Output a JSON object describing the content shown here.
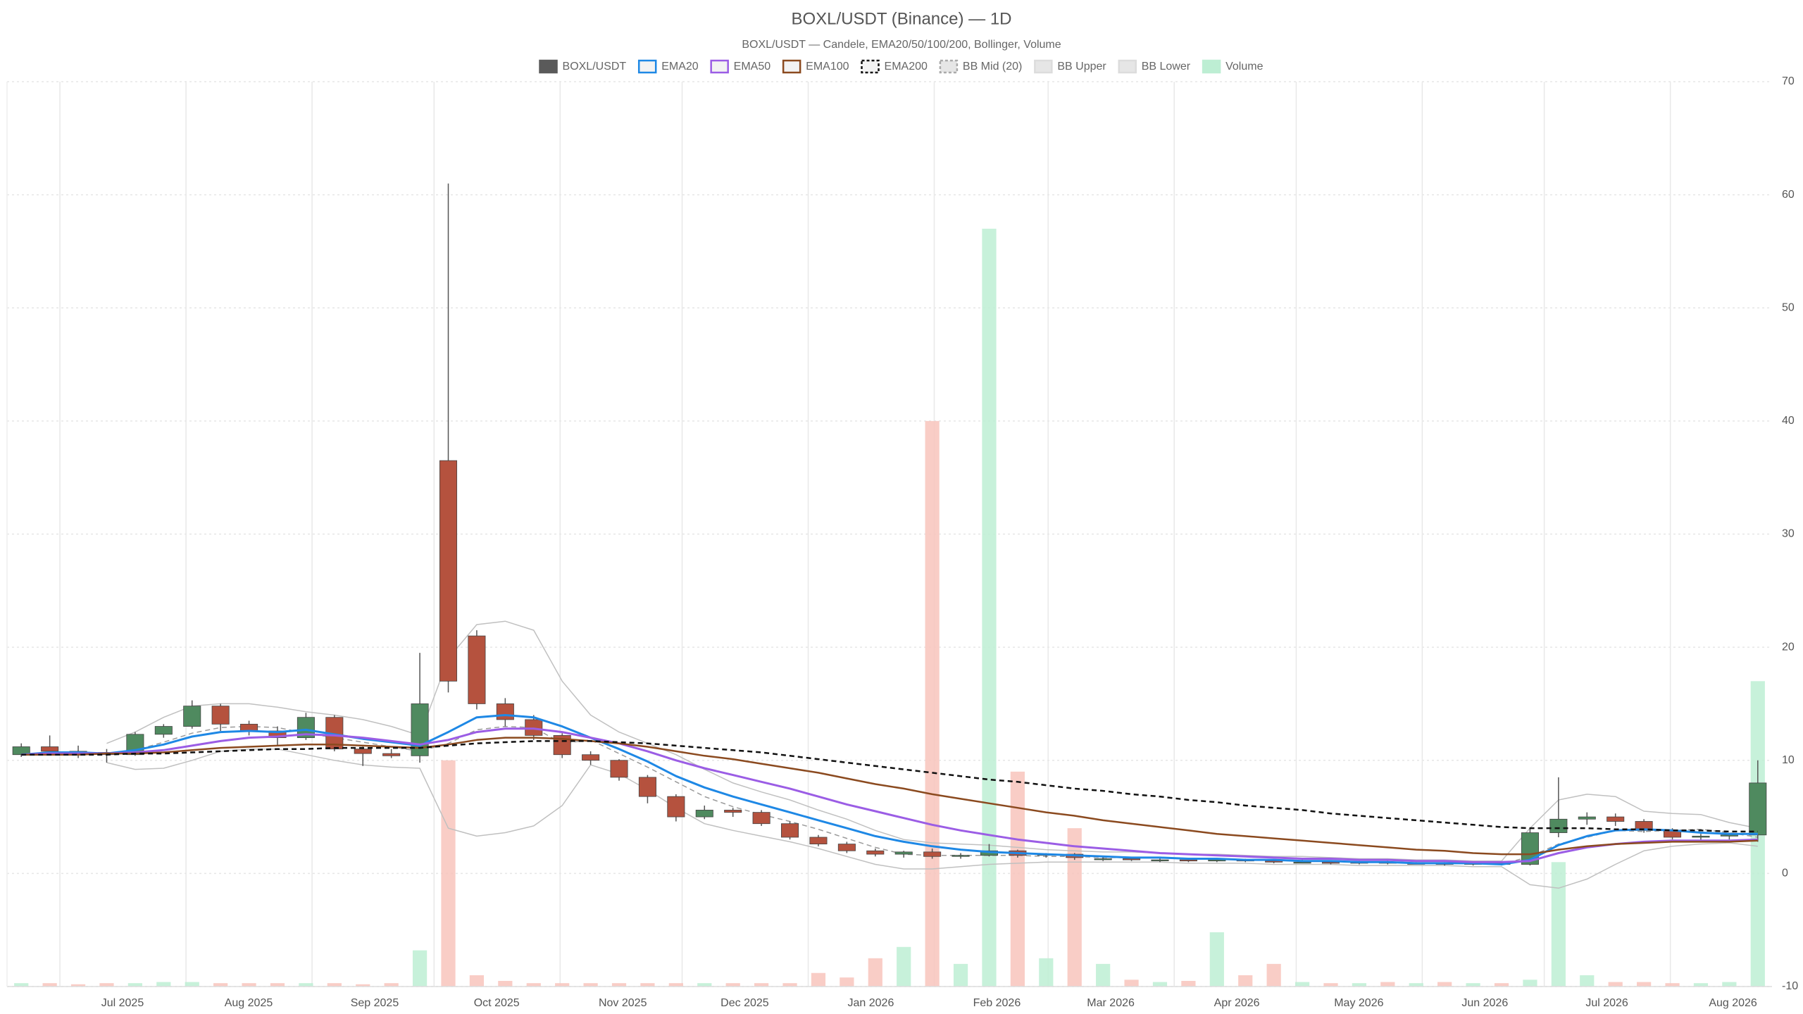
{
  "chart_data": {
    "type": "candlestick",
    "title": "BOXL/USDT (Binance) — 1D",
    "subtitle": "BOXL/USDT — Candele, EMA20/50/100/200, Bollinger, Volume",
    "categories": [
      null,
      null,
      null,
      null,
      null,
      null,
      null,
      null,
      null,
      null,
      null,
      null,
      null,
      null,
      null,
      null,
      null,
      null,
      null,
      null,
      null,
      null,
      null,
      null,
      null,
      null,
      null,
      null,
      null,
      null,
      null,
      null,
      null,
      null,
      null,
      null,
      null,
      null,
      null,
      null,
      null,
      null,
      null,
      null,
      null,
      null,
      null,
      null,
      null,
      null,
      null,
      null,
      null,
      null,
      null,
      null,
      null,
      null,
      null,
      null,
      null,
      null
    ],
    "xticks": [
      {
        "value": 1.857,
        "label": "Jul 2025"
      },
      {
        "value": 6.286,
        "label": "Aug 2025"
      },
      {
        "value": 10.714,
        "label": "Sep 2025"
      },
      {
        "value": 15,
        "label": "Oct 2025"
      },
      {
        "value": 19.429,
        "label": "Nov 2025"
      },
      {
        "value": 23.714,
        "label": "Dec 2025"
      },
      {
        "value": 28.143,
        "label": "Jan 2026"
      },
      {
        "value": 32.571,
        "label": "Feb 2026"
      },
      {
        "value": 36.571,
        "label": "Mar 2026"
      },
      {
        "value": 41,
        "label": "Apr 2026"
      },
      {
        "value": 45.286,
        "label": "May 2026"
      },
      {
        "value": 49.714,
        "label": "Jun 2026"
      },
      {
        "value": 54,
        "label": "Jul 2026"
      },
      {
        "value": 58.429,
        "label": "Aug 2026"
      }
    ],
    "ylim": [
      -10,
      70
    ],
    "yticks": [
      -10,
      0,
      10,
      20,
      30,
      40,
      50,
      60,
      70
    ],
    "y2lim": [
      0,
      80
    ],
    "grid": true,
    "series": [
      {
        "name": "BOXL/USDT",
        "type": "candlestick",
        "color": "#5a5a5a",
        "up_color": "#4f8a5f",
        "down_color": "#b5523e",
        "open": [
          10.5,
          11.2,
          10.8,
          10.7,
          10.5,
          12.3,
          13.0,
          14.8,
          13.2,
          12.6,
          12.0,
          13.8,
          11.0,
          10.6,
          10.4,
          36.5,
          21.0,
          15.0,
          13.6,
          12.2,
          10.5,
          10.0,
          8.5,
          6.8,
          5.0,
          5.6,
          5.4,
          4.4,
          3.2,
          2.6,
          2.0,
          1.7,
          1.9,
          1.5,
          1.6,
          2.0,
          1.6,
          1.7,
          1.3,
          1.3,
          1.2,
          1.2,
          1.1,
          1.2,
          1.1,
          1.0,
          1.0,
          0.9,
          1.0,
          0.9,
          0.9,
          0.8,
          0.9,
          0.8,
          3.6,
          4.8,
          5.0,
          4.6,
          3.8,
          3.2,
          3.3,
          3.4
        ],
        "high": [
          11.5,
          12.2,
          11.3,
          11.0,
          12.5,
          13.2,
          15.3,
          15.0,
          13.5,
          13.0,
          14.2,
          14.0,
          11.2,
          11.0,
          19.5,
          61.0,
          21.5,
          15.5,
          14.0,
          12.4,
          10.8,
          10.1,
          8.7,
          7.0,
          6.0,
          5.8,
          5.6,
          4.6,
          3.4,
          2.8,
          2.2,
          2.0,
          2.2,
          1.8,
          2.6,
          2.1,
          1.8,
          1.8,
          1.5,
          1.4,
          1.4,
          1.3,
          1.3,
          1.3,
          1.2,
          1.2,
          1.1,
          1.1,
          1.1,
          1.0,
          1.0,
          1.0,
          1.0,
          4.0,
          8.5,
          5.4,
          5.3,
          4.8,
          4.0,
          3.5,
          3.6,
          10.0
        ],
        "low": [
          10.3,
          10.6,
          10.2,
          9.8,
          10.4,
          12.0,
          12.8,
          12.6,
          12.2,
          11.3,
          11.8,
          10.8,
          9.5,
          10.2,
          9.8,
          16.0,
          14.5,
          13.0,
          11.8,
          10.2,
          9.6,
          8.2,
          6.2,
          4.6,
          4.8,
          5.0,
          4.2,
          3.0,
          2.4,
          1.8,
          1.5,
          1.4,
          1.3,
          1.3,
          1.5,
          1.4,
          1.4,
          1.2,
          1.1,
          1.1,
          1.0,
          1.0,
          1.0,
          1.0,
          0.9,
          0.9,
          0.8,
          0.8,
          0.8,
          0.8,
          0.7,
          0.7,
          0.7,
          0.7,
          3.2,
          4.3,
          4.2,
          3.6,
          3.0,
          2.9,
          3.0,
          2.8
        ],
        "close": [
          11.2,
          10.8,
          10.7,
          10.5,
          12.3,
          13.0,
          14.8,
          13.2,
          12.6,
          12.0,
          13.8,
          11.0,
          10.6,
          10.4,
          15.0,
          17.0,
          15.0,
          13.6,
          12.2,
          10.5,
          10.0,
          8.5,
          6.8,
          5.0,
          5.6,
          5.4,
          4.4,
          3.2,
          2.6,
          2.0,
          1.7,
          1.9,
          1.5,
          1.6,
          2.0,
          1.6,
          1.7,
          1.4,
          1.3,
          1.2,
          1.2,
          1.1,
          1.2,
          1.1,
          1.0,
          1.0,
          0.9,
          1.0,
          0.9,
          0.9,
          0.8,
          0.9,
          0.8,
          3.6,
          4.8,
          5.0,
          4.6,
          3.8,
          3.2,
          3.3,
          3.4,
          8.0
        ]
      },
      {
        "name": "EMA20",
        "type": "line",
        "color": "#1e88e5",
        "width": 3,
        "values": [
          10.5,
          10.7,
          10.7,
          10.6,
          10.9,
          11.4,
          12.1,
          12.5,
          12.6,
          12.5,
          12.7,
          12.3,
          11.9,
          11.6,
          11.3,
          12.5,
          13.8,
          14.0,
          13.8,
          13.0,
          12.0,
          11.0,
          9.9,
          8.6,
          7.6,
          6.8,
          6.1,
          5.4,
          4.7,
          4.0,
          3.3,
          2.8,
          2.4,
          2.1,
          1.9,
          1.8,
          1.7,
          1.6,
          1.5,
          1.4,
          1.4,
          1.3,
          1.3,
          1.2,
          1.2,
          1.1,
          1.1,
          1.0,
          1.0,
          0.9,
          0.9,
          0.9,
          0.8,
          1.2,
          2.5,
          3.3,
          3.8,
          3.9,
          3.8,
          3.6,
          3.5,
          3.5
        ]
      },
      {
        "name": "EMA50",
        "type": "line",
        "color": "#9b5de5",
        "width": 3,
        "values": [
          10.5,
          10.6,
          10.6,
          10.6,
          10.7,
          10.9,
          11.3,
          11.7,
          12.0,
          12.1,
          12.3,
          12.2,
          12.0,
          11.7,
          11.4,
          11.8,
          12.5,
          12.8,
          12.8,
          12.5,
          12.0,
          11.5,
          10.8,
          10.0,
          9.3,
          8.7,
          8.1,
          7.5,
          6.8,
          6.1,
          5.5,
          4.9,
          4.3,
          3.8,
          3.4,
          3.0,
          2.7,
          2.4,
          2.2,
          2.0,
          1.8,
          1.7,
          1.6,
          1.5,
          1.4,
          1.3,
          1.3,
          1.2,
          1.2,
          1.1,
          1.1,
          1.0,
          1.0,
          1.1,
          1.8,
          2.3,
          2.6,
          2.8,
          2.9,
          2.9,
          2.9,
          3.0
        ]
      },
      {
        "name": "EMA100",
        "type": "line",
        "color": "#8b4a1f",
        "width": 2.5,
        "values": [
          10.5,
          10.5,
          10.5,
          10.6,
          10.6,
          10.7,
          10.9,
          11.1,
          11.2,
          11.3,
          11.4,
          11.4,
          11.3,
          11.2,
          11.1,
          11.4,
          11.8,
          12.0,
          12.0,
          11.9,
          11.7,
          11.5,
          11.2,
          10.8,
          10.4,
          10.1,
          9.7,
          9.3,
          8.9,
          8.4,
          7.9,
          7.5,
          7.0,
          6.6,
          6.2,
          5.8,
          5.4,
          5.1,
          4.7,
          4.4,
          4.1,
          3.8,
          3.5,
          3.3,
          3.1,
          2.9,
          2.7,
          2.5,
          2.3,
          2.1,
          2.0,
          1.8,
          1.7,
          1.7,
          2.1,
          2.4,
          2.6,
          2.7,
          2.8,
          2.8,
          2.8,
          2.9
        ]
      },
      {
        "name": "EMA200",
        "type": "line",
        "color": "#111111",
        "width": 2.5,
        "dash": true,
        "values": [
          10.5,
          10.5,
          10.5,
          10.5,
          10.6,
          10.6,
          10.7,
          10.8,
          10.9,
          11.0,
          11.0,
          11.1,
          11.1,
          11.1,
          11.1,
          11.3,
          11.5,
          11.6,
          11.7,
          11.7,
          11.7,
          11.6,
          11.5,
          11.3,
          11.1,
          10.9,
          10.7,
          10.4,
          10.1,
          9.8,
          9.5,
          9.2,
          8.9,
          8.6,
          8.3,
          8.1,
          7.8,
          7.5,
          7.3,
          7.0,
          6.8,
          6.5,
          6.3,
          6.0,
          5.8,
          5.6,
          5.3,
          5.1,
          4.9,
          4.7,
          4.5,
          4.3,
          4.1,
          4.0,
          4.0,
          4.0,
          3.9,
          3.9,
          3.8,
          3.8,
          3.7,
          3.7
        ]
      },
      {
        "name": "BB Mid (20)",
        "type": "line",
        "color": "#9a9a9a",
        "width": 1.5,
        "dash": true,
        "values": [
          null,
          null,
          null,
          10.6,
          10.9,
          11.6,
          12.4,
          12.9,
          13.0,
          12.9,
          12.4,
          12.0,
          11.6,
          11.2,
          10.8,
          11.5,
          12.7,
          13.0,
          12.9,
          11.5,
          11.8,
          10.6,
          9.4,
          8.1,
          6.8,
          5.9,
          5.2,
          4.6,
          3.9,
          3.1,
          2.3,
          1.7,
          1.6,
          1.6,
          1.6,
          1.6,
          1.5,
          1.5,
          1.4,
          1.4,
          1.4,
          1.3,
          1.3,
          1.2,
          1.2,
          1.1,
          1.1,
          1.0,
          1.0,
          0.9,
          0.9,
          0.9,
          0.8,
          1.5,
          2.6,
          3.2,
          3.8,
          3.7,
          3.8,
          3.9,
          3.6,
          3.2
        ]
      },
      {
        "name": "BB Upper",
        "type": "line",
        "color": "#c0c0c0",
        "width": 1.5,
        "values": [
          null,
          null,
          null,
          11.5,
          12.5,
          13.8,
          14.8,
          15.0,
          15.0,
          14.7,
          14.3,
          14.0,
          13.6,
          13.0,
          12.2,
          19.0,
          22.0,
          22.3,
          21.5,
          17.0,
          14.0,
          12.5,
          11.5,
          10.5,
          9.2,
          8.0,
          7.2,
          6.5,
          5.6,
          4.8,
          3.8,
          3.0,
          2.7,
          2.6,
          2.5,
          2.3,
          2.1,
          2.0,
          1.9,
          1.9,
          1.8,
          1.7,
          1.7,
          1.6,
          1.5,
          1.5,
          1.4,
          1.3,
          1.3,
          1.2,
          1.2,
          1.1,
          1.1,
          4.0,
          6.5,
          7.0,
          6.8,
          5.5,
          5.3,
          5.2,
          4.5,
          4.0
        ]
      },
      {
        "name": "BB Lower",
        "type": "line",
        "color": "#c0c0c0",
        "width": 1.5,
        "values": [
          null,
          null,
          null,
          9.8,
          9.2,
          9.3,
          10.0,
          10.8,
          11.0,
          11.0,
          10.5,
          10.0,
          9.6,
          9.4,
          9.3,
          4.0,
          3.3,
          3.6,
          4.2,
          6.0,
          9.6,
          8.8,
          7.4,
          5.8,
          4.4,
          3.8,
          3.3,
          2.8,
          2.2,
          1.5,
          0.8,
          0.4,
          0.4,
          0.6,
          0.8,
          0.9,
          1.0,
          1.0,
          1.0,
          1.0,
          1.0,
          0.9,
          0.9,
          0.9,
          0.8,
          0.8,
          0.8,
          0.7,
          0.7,
          0.7,
          0.7,
          0.6,
          0.6,
          -1.0,
          -1.3,
          -0.5,
          0.8,
          2.0,
          2.4,
          2.6,
          2.7,
          2.4
        ]
      },
      {
        "name": "Volume",
        "type": "bar",
        "axis": "y2",
        "color": "#bdeed3",
        "down_color": "#f8c4bc",
        "values": [
          0.3,
          0.3,
          0.2,
          0.3,
          0.3,
          0.4,
          0.4,
          0.3,
          0.3,
          0.3,
          0.3,
          0.3,
          0.2,
          0.3,
          3.2,
          20,
          1.0,
          0.5,
          0.3,
          0.3,
          0.3,
          0.3,
          0.3,
          0.3,
          0.3,
          0.3,
          0.3,
          0.3,
          1.2,
          0.8,
          2.5,
          3.5,
          50,
          2.0,
          67,
          19,
          2.5,
          14,
          2.0,
          0.6,
          0.4,
          0.5,
          4.8,
          1.0,
          2.0,
          0.4,
          0.3,
          0.3,
          0.4,
          0.3,
          0.4,
          0.3,
          0.3,
          0.6,
          11,
          1.0,
          0.4,
          0.4,
          0.3,
          0.3,
          0.4,
          27
        ]
      }
    ]
  }
}
